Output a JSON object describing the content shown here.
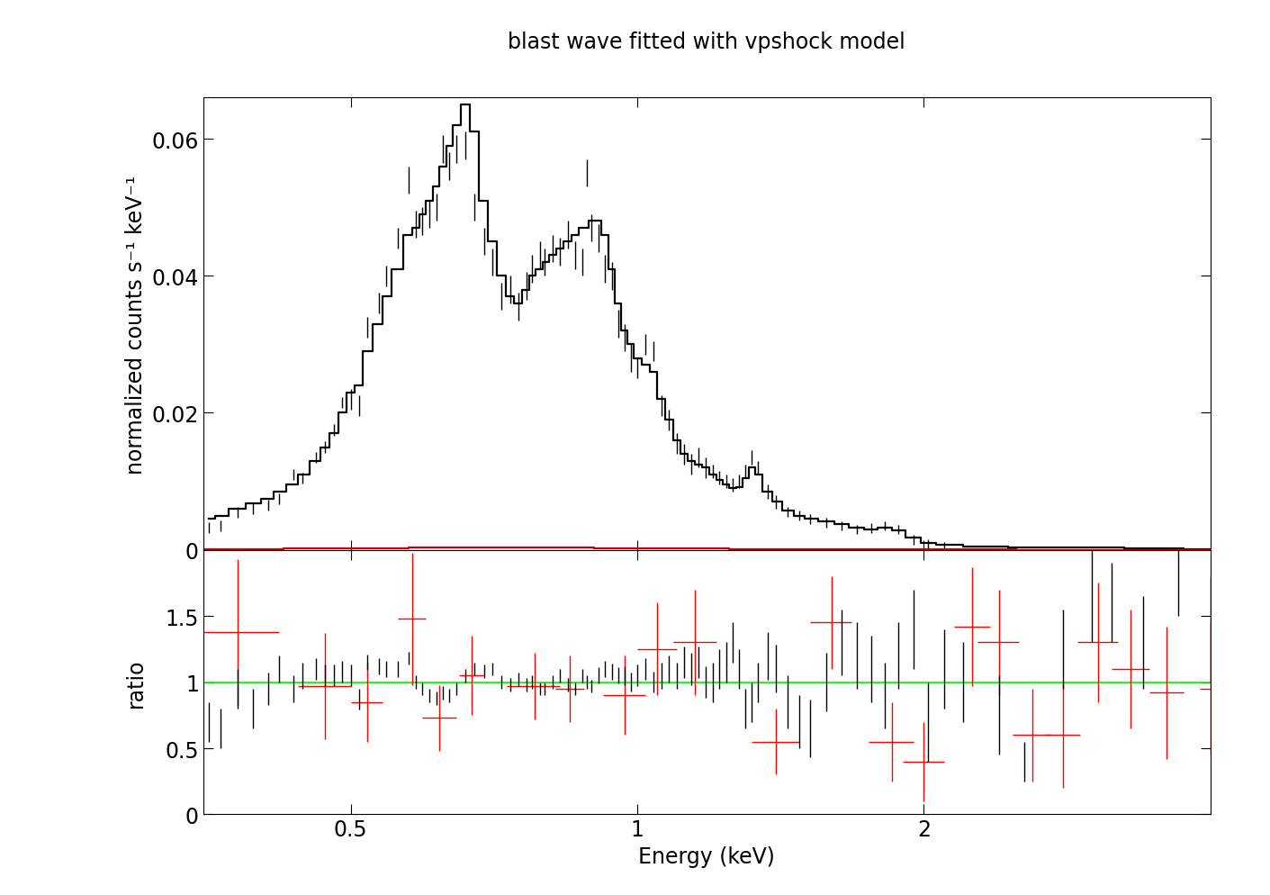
{
  "chart_data": [
    {
      "type": "scatter",
      "title": "blast wave fitted with vpshock model",
      "y_label": "normalized counts s⁻¹ keV⁻¹",
      "log": "x",
      "tick_labels": "y",
      "xlim": [
        0.35,
        4.0
      ],
      "xticks": [
        0.5,
        1,
        2
      ],
      "ylim": [
        0,
        0.066
      ],
      "yticks": [
        0,
        0.02,
        0.04,
        0.06
      ],
      "series": [
        {
          "type": "errorbar",
          "color": "#000000",
          "x": [
            0.355,
            0.365,
            0.38,
            0.395,
            0.41,
            0.42,
            0.435,
            0.445,
            0.46,
            0.47,
            0.48,
            0.49,
            0.5,
            0.51,
            0.52,
            0.535,
            0.545,
            0.56,
            0.575,
            0.585,
            0.595,
            0.605,
            0.615,
            0.625,
            0.635,
            0.645,
            0.66,
            0.675,
            0.69,
            0.705,
            0.72,
            0.735,
            0.75,
            0.765,
            0.775,
            0.79,
            0.8,
            0.815,
            0.83,
            0.845,
            0.86,
            0.875,
            0.885,
            0.895,
            0.91,
            0.925,
            0.94,
            0.955,
            0.97,
            0.985,
            1.0,
            1.02,
            1.04,
            1.06,
            1.08,
            1.1,
            1.12,
            1.14,
            1.16,
            1.18,
            1.2,
            1.22,
            1.24,
            1.26,
            1.28,
            1.3,
            1.32,
            1.34,
            1.37,
            1.4,
            1.44,
            1.48,
            1.52,
            1.58,
            1.64,
            1.7,
            1.76,
            1.82,
            1.88,
            1.95,
            2.02,
            2.1
          ],
          "values": [
            0.0032,
            0.0035,
            0.0055,
            0.006,
            0.0065,
            0.0075,
            0.011,
            0.0105,
            0.0135,
            0.015,
            0.0175,
            0.0215,
            0.022,
            0.021,
            0.0325,
            0.036,
            0.04,
            0.0455,
            0.054,
            0.0475,
            0.048,
            0.049,
            0.05,
            0.0585,
            0.056,
            0.0585,
            0.059,
            0.05,
            0.045,
            0.042,
            0.037,
            0.038,
            0.0355,
            0.0385,
            0.041,
            0.043,
            0.042,
            0.044,
            0.0435,
            0.046,
            0.043,
            0.042,
            0.055,
            0.047,
            0.0455,
            0.041,
            0.04,
            0.033,
            0.031,
            0.028,
            0.0265,
            0.03,
            0.029,
            0.021,
            0.019,
            0.0155,
            0.014,
            0.0125,
            0.0135,
            0.012,
            0.0115,
            0.0105,
            0.01,
            0.0095,
            0.01,
            0.0115,
            0.0135,
            0.012,
            0.0085,
            0.007,
            0.0055,
            0.005,
            0.0045,
            0.004,
            0.0035,
            0.003,
            0.0032,
            0.0035,
            0.003,
            0.0015,
            0.0008,
            0.0005
          ],
          "yerr": [
            0.0008,
            0.0008,
            0.0008,
            0.0008,
            0.0008,
            0.0008,
            0.0008,
            0.0008,
            0.0008,
            0.0008,
            0.0008,
            0.0008,
            0.0015,
            0.0015,
            0.0015,
            0.0015,
            0.0015,
            0.0015,
            0.002,
            0.002,
            0.002,
            0.002,
            0.002,
            0.002,
            0.002,
            0.002,
            0.002,
            0.002,
            0.002,
            0.002,
            0.002,
            0.002,
            0.002,
            0.002,
            0.002,
            0.002,
            0.002,
            0.002,
            0.002,
            0.002,
            0.002,
            0.002,
            0.002,
            0.002,
            0.002,
            0.002,
            0.002,
            0.002,
            0.002,
            0.002,
            0.0015,
            0.0015,
            0.0015,
            0.0015,
            0.0015,
            0.0015,
            0.0015,
            0.0015,
            0.0015,
            0.0015,
            0.001,
            0.001,
            0.001,
            0.001,
            0.001,
            0.001,
            0.001,
            0.001,
            0.001,
            0.001,
            0.0007,
            0.0007,
            0.0007,
            0.0007,
            0.0007,
            0.0007,
            0.0007,
            0.0007,
            0.0007,
            0.0007,
            0.0007,
            0.0007
          ]
        },
        {
          "type": "step",
          "color": "#000000",
          "x": [
            0.355,
            0.365,
            0.38,
            0.395,
            0.41,
            0.42,
            0.435,
            0.445,
            0.46,
            0.47,
            0.48,
            0.49,
            0.5,
            0.51,
            0.52,
            0.535,
            0.545,
            0.56,
            0.575,
            0.585,
            0.595,
            0.605,
            0.615,
            0.625,
            0.635,
            0.645,
            0.66,
            0.675,
            0.69,
            0.705,
            0.72,
            0.735,
            0.75,
            0.765,
            0.775,
            0.79,
            0.8,
            0.815,
            0.83,
            0.845,
            0.86,
            0.875,
            0.885,
            0.895,
            0.91,
            0.925,
            0.94,
            0.955,
            0.97,
            0.985,
            1.0,
            1.02,
            1.04,
            1.06,
            1.08,
            1.1,
            1.12,
            1.14,
            1.16,
            1.18,
            1.2,
            1.22,
            1.24,
            1.26,
            1.28,
            1.3,
            1.32,
            1.34,
            1.37,
            1.4,
            1.44,
            1.48,
            1.52,
            1.58,
            1.64,
            1.7,
            1.76,
            1.82,
            1.88,
            1.95,
            2.02,
            2.1,
            2.3,
            2.6,
            3.0,
            3.5,
            4.0
          ],
          "values": [
            0.0045,
            0.005,
            0.006,
            0.0068,
            0.0075,
            0.0085,
            0.0095,
            0.011,
            0.013,
            0.015,
            0.017,
            0.02,
            0.023,
            0.024,
            0.029,
            0.033,
            0.037,
            0.041,
            0.046,
            0.047,
            0.049,
            0.051,
            0.053,
            0.056,
            0.059,
            0.062,
            0.065,
            0.061,
            0.051,
            0.045,
            0.04,
            0.037,
            0.036,
            0.038,
            0.04,
            0.041,
            0.042,
            0.043,
            0.044,
            0.045,
            0.046,
            0.047,
            0.047,
            0.048,
            0.048,
            0.046,
            0.041,
            0.036,
            0.032,
            0.03,
            0.028,
            0.027,
            0.026,
            0.022,
            0.019,
            0.016,
            0.014,
            0.013,
            0.0125,
            0.012,
            0.011,
            0.0102,
            0.0095,
            0.009,
            0.0092,
            0.0105,
            0.012,
            0.011,
            0.0085,
            0.007,
            0.0058,
            0.005,
            0.0045,
            0.0042,
            0.0038,
            0.0032,
            0.003,
            0.0033,
            0.0028,
            0.0018,
            0.001,
            0.0007,
            0.0005,
            0.0004,
            0.0003,
            0.0002,
            0.0001
          ]
        },
        {
          "type": "step",
          "color": "#cc0000",
          "x": [
            0.35,
            0.5,
            0.65,
            0.7,
            0.8,
            1.0,
            1.5,
            2.0,
            3.0,
            4.0
          ],
          "values": [
            0.0001,
            0.0002,
            0.0004,
            0.0004,
            0.0003,
            0.0002,
            0.0001,
            0.0001,
            0.0,
            0.0
          ]
        }
      ]
    },
    {
      "type": "scatter",
      "x_label": "Energy (keV)",
      "y_label": "ratio",
      "log": "x",
      "xlim": [
        0.35,
        4.0
      ],
      "xticks": [
        0.5,
        1,
        2
      ],
      "ylim": [
        0,
        2
      ],
      "yticks": [
        0,
        0.5,
        1,
        1.5
      ],
      "series": [
        {
          "type": "hline",
          "color": "#00ff00",
          "value": 1
        },
        {
          "type": "errorbar",
          "color": "#ff0000",
          "x": [
            0.38,
            0.47,
            0.52,
            0.58,
            0.62,
            0.67,
            0.78,
            0.85,
            0.97,
            1.05,
            1.15,
            1.4,
            1.6,
            1.85,
            2.0,
            2.25,
            2.4,
            2.6,
            2.8,
            3.05,
            3.3,
            3.6,
            4.0
          ],
          "values": [
            1.38,
            0.97,
            0.85,
            1.48,
            0.73,
            1.05,
            0.97,
            0.95,
            0.9,
            1.25,
            1.3,
            0.55,
            1.45,
            0.55,
            0.4,
            1.42,
            1.3,
            0.6,
            0.6,
            1.3,
            1.1,
            0.92,
            0.95
          ],
          "xerr": [
            0.04,
            0.03,
            0.02,
            0.02,
            0.025,
            0.02,
            0.05,
            0.03,
            0.05,
            0.05,
            0.06,
            0.08,
            0.08,
            0.1,
            0.1,
            0.1,
            0.12,
            0.12,
            0.12,
            0.15,
            0.15,
            0.15,
            0.1
          ],
          "yerr": [
            0.55,
            0.4,
            0.3,
            0.5,
            0.25,
            0.3,
            0.25,
            0.25,
            0.3,
            0.35,
            0.4,
            0.25,
            0.35,
            0.3,
            0.3,
            0.45,
            0.4,
            0.35,
            0.4,
            0.45,
            0.45,
            0.5,
            0.5
          ]
        },
        {
          "type": "errorbar",
          "color": "#000000",
          "x": [
            0.355,
            0.365,
            0.38,
            0.395,
            0.41,
            0.42,
            0.435,
            0.445,
            0.46,
            0.47,
            0.48,
            0.49,
            0.5,
            0.51,
            0.52,
            0.535,
            0.545,
            0.56,
            0.575,
            0.585,
            0.595,
            0.605,
            0.615,
            0.625,
            0.635,
            0.645,
            0.66,
            0.675,
            0.69,
            0.705,
            0.72,
            0.735,
            0.75,
            0.765,
            0.775,
            0.79,
            0.8,
            0.815,
            0.83,
            0.845,
            0.86,
            0.875,
            0.885,
            0.895,
            0.91,
            0.925,
            0.94,
            0.955,
            0.97,
            0.985,
            1.0,
            1.02,
            1.04,
            1.06,
            1.08,
            1.1,
            1.12,
            1.14,
            1.16,
            1.18,
            1.2,
            1.22,
            1.24,
            1.26,
            1.28,
            1.3,
            1.32,
            1.34,
            1.37,
            1.4,
            1.44,
            1.48,
            1.52,
            1.58,
            1.64,
            1.7,
            1.76,
            1.82,
            1.88,
            1.95,
            2.02,
            2.1,
            2.2,
            2.4,
            2.55,
            2.8,
            3.0,
            3.15,
            3.4,
            3.7,
            4.0
          ],
          "values": [
            0.7,
            0.65,
            0.95,
            0.8,
            0.95,
            1.1,
            0.95,
            1.05,
            1.1,
            1.05,
            1.05,
            1.08,
            1.05,
            0.87,
            1.15,
            1.12,
            1.1,
            1.1,
            1.18,
            1.0,
            0.95,
            0.9,
            0.88,
            0.92,
            0.9,
            0.95,
            1.05,
            1.1,
            1.08,
            1.1,
            1.0,
            0.98,
            1.02,
            0.98,
            1.0,
            0.95,
            0.95,
            1.0,
            1.05,
            0.98,
            0.95,
            1.05,
            1.0,
            0.97,
            1.05,
            1.1,
            1.08,
            1.05,
            1.05,
            1.0,
            1.05,
            1.1,
            1.0,
            1.05,
            1.1,
            1.05,
            1.15,
            1.1,
            1.15,
            1.0,
            1.0,
            1.1,
            1.15,
            1.3,
            1.1,
            0.8,
            0.85,
            1.0,
            1.2,
            1.1,
            0.85,
            0.7,
            0.65,
            1.0,
            1.3,
            1.2,
            1.1,
            0.9,
            1.2,
            1.4,
            0.7,
            1.1,
            1.0,
            0.75,
            0.4,
            1.25,
            1.65,
            1.6,
            1.3,
            1.9,
            1.4
          ],
          "yerr": [
            0.15,
            0.15,
            0.15,
            0.15,
            0.12,
            0.1,
            0.1,
            0.1,
            0.08,
            0.08,
            0.08,
            0.08,
            0.08,
            0.08,
            0.06,
            0.06,
            0.06,
            0.06,
            0.05,
            0.05,
            0.05,
            0.05,
            0.05,
            0.05,
            0.05,
            0.05,
            0.05,
            0.05,
            0.05,
            0.05,
            0.05,
            0.05,
            0.05,
            0.05,
            0.05,
            0.05,
            0.05,
            0.05,
            0.05,
            0.05,
            0.05,
            0.05,
            0.05,
            0.05,
            0.06,
            0.06,
            0.06,
            0.06,
            0.07,
            0.07,
            0.08,
            0.08,
            0.08,
            0.1,
            0.1,
            0.1,
            0.12,
            0.12,
            0.12,
            0.12,
            0.15,
            0.15,
            0.15,
            0.15,
            0.15,
            0.15,
            0.15,
            0.15,
            0.18,
            0.18,
            0.2,
            0.2,
            0.22,
            0.22,
            0.25,
            0.25,
            0.25,
            0.25,
            0.25,
            0.3,
            0.3,
            0.3,
            0.3,
            0.3,
            0.15,
            0.3,
            0.35,
            0.3,
            0.35,
            0.4,
            0.4
          ]
        }
      ]
    }
  ]
}
